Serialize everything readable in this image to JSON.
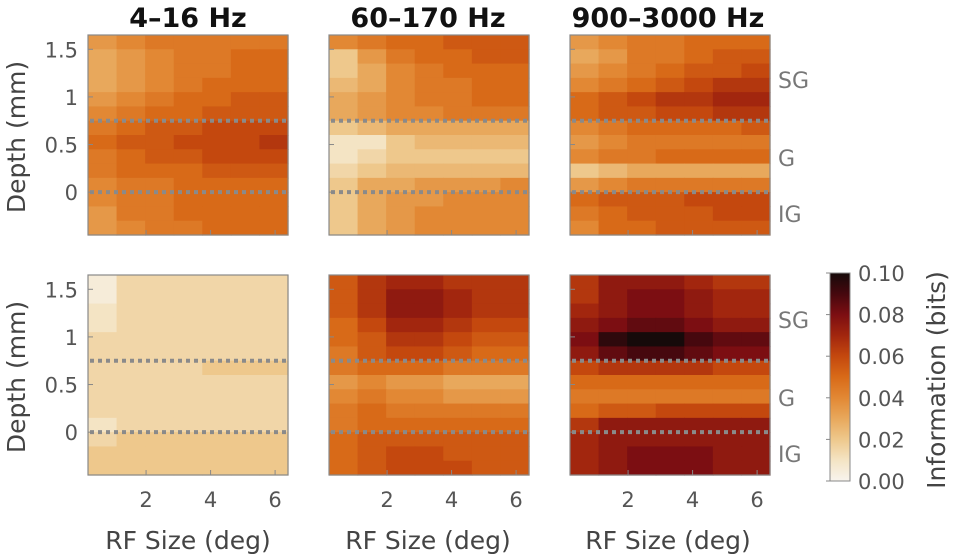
{
  "chart_data": {
    "type": "heatmap",
    "column_titles": [
      "4–16 Hz",
      "60–170 Hz",
      "900–3000 Hz"
    ],
    "xlabel": "RF Size (deg)",
    "ylabel": "Depth (mm)",
    "x_ticks": [
      "2",
      "4",
      "6"
    ],
    "y_ticks": [
      "1.5",
      "1",
      "0.5",
      "0"
    ],
    "xlim": [
      0.2,
      6.4
    ],
    "ylim": [
      -0.45,
      1.65
    ],
    "layer_labels": [
      "SG",
      "G",
      "IG"
    ],
    "layer_boundaries_mm": [
      0.75,
      0
    ],
    "colorbar": {
      "label": "Information (bits)",
      "ticks": [
        "0.10",
        "0.08",
        "0.06",
        "0.04",
        "0.02",
        "0.00"
      ],
      "range": [
        0,
        0.1
      ]
    },
    "colormap_note": "orange-red-black sequential, white at 0",
    "panels": [
      {
        "row": 0,
        "col": 0,
        "depth_levels_mm": [
          1.6,
          1.45,
          1.3,
          1.15,
          1.0,
          0.85,
          0.7,
          0.55,
          0.4,
          0.25,
          0.1,
          -0.05,
          -0.2,
          -0.35
        ],
        "rf_sizes_deg": [
          0.5,
          1.5,
          2.5,
          3.5,
          4.5,
          5.5,
          6.2
        ],
        "values": [
          [
            0.035,
            0.04,
            0.045,
            0.045,
            0.045,
            0.045,
            0.045
          ],
          [
            0.03,
            0.035,
            0.04,
            0.045,
            0.045,
            0.05,
            0.05
          ],
          [
            0.03,
            0.035,
            0.04,
            0.045,
            0.045,
            0.05,
            0.05
          ],
          [
            0.03,
            0.035,
            0.04,
            0.045,
            0.05,
            0.05,
            0.05
          ],
          [
            0.035,
            0.04,
            0.045,
            0.05,
            0.05,
            0.055,
            0.055
          ],
          [
            0.04,
            0.045,
            0.05,
            0.05,
            0.055,
            0.055,
            0.055
          ],
          [
            0.045,
            0.05,
            0.055,
            0.055,
            0.06,
            0.06,
            0.06
          ],
          [
            0.05,
            0.055,
            0.055,
            0.06,
            0.06,
            0.06,
            0.065
          ],
          [
            0.045,
            0.05,
            0.055,
            0.055,
            0.06,
            0.06,
            0.06
          ],
          [
            0.045,
            0.05,
            0.05,
            0.05,
            0.055,
            0.055,
            0.055
          ],
          [
            0.04,
            0.045,
            0.045,
            0.05,
            0.05,
            0.05,
            0.05
          ],
          [
            0.04,
            0.045,
            0.045,
            0.05,
            0.05,
            0.05,
            0.05
          ],
          [
            0.035,
            0.045,
            0.045,
            0.05,
            0.05,
            0.05,
            0.05
          ],
          [
            0.035,
            0.04,
            0.045,
            0.045,
            0.05,
            0.05,
            0.05
          ]
        ]
      },
      {
        "row": 0,
        "col": 1,
        "depth_levels_mm": [
          1.6,
          1.45,
          1.3,
          1.15,
          1.0,
          0.85,
          0.7,
          0.55,
          0.4,
          0.25,
          0.1,
          -0.05,
          -0.2,
          -0.35
        ],
        "rf_sizes_deg": [
          0.5,
          1.5,
          2.5,
          3.5,
          4.5,
          5.5,
          6.2
        ],
        "values": [
          [
            0.04,
            0.045,
            0.05,
            0.05,
            0.055,
            0.055,
            0.055
          ],
          [
            0.02,
            0.035,
            0.045,
            0.05,
            0.05,
            0.055,
            0.055
          ],
          [
            0.02,
            0.03,
            0.04,
            0.045,
            0.05,
            0.05,
            0.05
          ],
          [
            0.025,
            0.03,
            0.04,
            0.045,
            0.045,
            0.05,
            0.05
          ],
          [
            0.03,
            0.035,
            0.04,
            0.045,
            0.045,
            0.05,
            0.05
          ],
          [
            0.03,
            0.035,
            0.04,
            0.04,
            0.045,
            0.045,
            0.045
          ],
          [
            0.02,
            0.025,
            0.03,
            0.03,
            0.03,
            0.03,
            0.03
          ],
          [
            0.01,
            0.01,
            0.02,
            0.025,
            0.025,
            0.025,
            0.025
          ],
          [
            0.01,
            0.015,
            0.02,
            0.02,
            0.02,
            0.02,
            0.02
          ],
          [
            0.015,
            0.02,
            0.025,
            0.025,
            0.025,
            0.025,
            0.025
          ],
          [
            0.02,
            0.03,
            0.03,
            0.035,
            0.035,
            0.035,
            0.04
          ],
          [
            0.02,
            0.03,
            0.035,
            0.035,
            0.04,
            0.04,
            0.04
          ],
          [
            0.02,
            0.03,
            0.035,
            0.04,
            0.04,
            0.04,
            0.04
          ],
          [
            0.02,
            0.03,
            0.035,
            0.04,
            0.04,
            0.04,
            0.04
          ]
        ]
      },
      {
        "row": 0,
        "col": 2,
        "depth_levels_mm": [
          1.6,
          1.45,
          1.3,
          1.15,
          1.0,
          0.85,
          0.7,
          0.55,
          0.4,
          0.25,
          0.1,
          -0.05,
          -0.2,
          -0.35
        ],
        "rf_sizes_deg": [
          0.5,
          1.5,
          2.5,
          3.5,
          4.5,
          5.5,
          6.2
        ],
        "values": [
          [
            0.035,
            0.04,
            0.045,
            0.045,
            0.05,
            0.05,
            0.05
          ],
          [
            0.03,
            0.035,
            0.045,
            0.045,
            0.05,
            0.055,
            0.055
          ],
          [
            0.035,
            0.04,
            0.045,
            0.05,
            0.055,
            0.055,
            0.06
          ],
          [
            0.04,
            0.045,
            0.05,
            0.055,
            0.06,
            0.065,
            0.065
          ],
          [
            0.05,
            0.055,
            0.06,
            0.065,
            0.065,
            0.07,
            0.07
          ],
          [
            0.05,
            0.055,
            0.055,
            0.06,
            0.06,
            0.065,
            0.065
          ],
          [
            0.04,
            0.045,
            0.05,
            0.05,
            0.05,
            0.05,
            0.055
          ],
          [
            0.035,
            0.04,
            0.045,
            0.045,
            0.045,
            0.045,
            0.045
          ],
          [
            0.04,
            0.045,
            0.045,
            0.05,
            0.05,
            0.05,
            0.05
          ],
          [
            0.02,
            0.025,
            0.03,
            0.03,
            0.03,
            0.03,
            0.03
          ],
          [
            0.035,
            0.04,
            0.045,
            0.045,
            0.045,
            0.045,
            0.045
          ],
          [
            0.05,
            0.055,
            0.055,
            0.055,
            0.06,
            0.06,
            0.06
          ],
          [
            0.045,
            0.05,
            0.055,
            0.055,
            0.055,
            0.06,
            0.06
          ],
          [
            0.04,
            0.05,
            0.05,
            0.055,
            0.055,
            0.055,
            0.055
          ]
        ]
      },
      {
        "row": 1,
        "col": 0,
        "depth_levels_mm": [
          1.6,
          1.45,
          1.3,
          1.15,
          1.0,
          0.85,
          0.7,
          0.55,
          0.4,
          0.25,
          0.1,
          -0.05,
          -0.2,
          -0.35
        ],
        "rf_sizes_deg": [
          0.5,
          1.5,
          2.5,
          3.5,
          4.5,
          5.5,
          6.2
        ],
        "values": [
          [
            0.005,
            0.015,
            0.015,
            0.015,
            0.015,
            0.015,
            0.015
          ],
          [
            0.005,
            0.015,
            0.015,
            0.015,
            0.015,
            0.015,
            0.015
          ],
          [
            0.01,
            0.015,
            0.015,
            0.015,
            0.015,
            0.015,
            0.015
          ],
          [
            0.01,
            0.015,
            0.015,
            0.015,
            0.015,
            0.015,
            0.015
          ],
          [
            0.015,
            0.015,
            0.015,
            0.015,
            0.015,
            0.015,
            0.015
          ],
          [
            0.015,
            0.015,
            0.015,
            0.015,
            0.015,
            0.015,
            0.015
          ],
          [
            0.015,
            0.015,
            0.015,
            0.015,
            0.02,
            0.02,
            0.02
          ],
          [
            0.015,
            0.015,
            0.015,
            0.015,
            0.015,
            0.015,
            0.015
          ],
          [
            0.015,
            0.015,
            0.015,
            0.015,
            0.015,
            0.015,
            0.015
          ],
          [
            0.015,
            0.015,
            0.015,
            0.015,
            0.015,
            0.015,
            0.015
          ],
          [
            0.01,
            0.015,
            0.015,
            0.015,
            0.015,
            0.015,
            0.015
          ],
          [
            0.015,
            0.02,
            0.02,
            0.02,
            0.02,
            0.02,
            0.02
          ],
          [
            0.02,
            0.02,
            0.02,
            0.02,
            0.02,
            0.02,
            0.02
          ],
          [
            0.02,
            0.02,
            0.02,
            0.02,
            0.02,
            0.02,
            0.02
          ]
        ]
      },
      {
        "row": 1,
        "col": 1,
        "depth_levels_mm": [
          1.6,
          1.45,
          1.3,
          1.15,
          1.0,
          0.85,
          0.7,
          0.55,
          0.4,
          0.25,
          0.1,
          -0.05,
          -0.2,
          -0.35
        ],
        "rf_sizes_deg": [
          0.5,
          1.5,
          2.5,
          3.5,
          4.5,
          5.5,
          6.2
        ],
        "values": [
          [
            0.055,
            0.065,
            0.07,
            0.07,
            0.065,
            0.065,
            0.065
          ],
          [
            0.055,
            0.065,
            0.075,
            0.075,
            0.07,
            0.065,
            0.065
          ],
          [
            0.055,
            0.065,
            0.075,
            0.075,
            0.07,
            0.065,
            0.065
          ],
          [
            0.05,
            0.06,
            0.07,
            0.07,
            0.065,
            0.06,
            0.06
          ],
          [
            0.05,
            0.055,
            0.065,
            0.065,
            0.06,
            0.055,
            0.055
          ],
          [
            0.045,
            0.055,
            0.06,
            0.06,
            0.055,
            0.05,
            0.05
          ],
          [
            0.045,
            0.05,
            0.05,
            0.05,
            0.045,
            0.045,
            0.045
          ],
          [
            0.035,
            0.04,
            0.035,
            0.035,
            0.03,
            0.03,
            0.03
          ],
          [
            0.04,
            0.045,
            0.04,
            0.04,
            0.035,
            0.035,
            0.035
          ],
          [
            0.045,
            0.05,
            0.045,
            0.045,
            0.045,
            0.045,
            0.045
          ],
          [
            0.045,
            0.05,
            0.05,
            0.05,
            0.05,
            0.05,
            0.05
          ],
          [
            0.05,
            0.055,
            0.055,
            0.055,
            0.055,
            0.055,
            0.055
          ],
          [
            0.05,
            0.055,
            0.06,
            0.06,
            0.055,
            0.055,
            0.055
          ],
          [
            0.05,
            0.055,
            0.06,
            0.06,
            0.06,
            0.055,
            0.055
          ]
        ]
      },
      {
        "row": 1,
        "col": 2,
        "depth_levels_mm": [
          1.6,
          1.45,
          1.3,
          1.15,
          1.0,
          0.85,
          0.7,
          0.55,
          0.4,
          0.25,
          0.1,
          -0.05,
          -0.2,
          -0.35
        ],
        "rf_sizes_deg": [
          0.5,
          1.5,
          2.5,
          3.5,
          4.5,
          5.5,
          6.2
        ],
        "values": [
          [
            0.065,
            0.075,
            0.075,
            0.075,
            0.07,
            0.065,
            0.065
          ],
          [
            0.065,
            0.075,
            0.08,
            0.08,
            0.075,
            0.07,
            0.07
          ],
          [
            0.07,
            0.075,
            0.08,
            0.08,
            0.075,
            0.07,
            0.07
          ],
          [
            0.075,
            0.08,
            0.085,
            0.085,
            0.08,
            0.075,
            0.075
          ],
          [
            0.08,
            0.095,
            0.1,
            0.1,
            0.09,
            0.085,
            0.085
          ],
          [
            0.075,
            0.085,
            0.09,
            0.09,
            0.085,
            0.08,
            0.08
          ],
          [
            0.06,
            0.065,
            0.065,
            0.065,
            0.065,
            0.06,
            0.06
          ],
          [
            0.05,
            0.05,
            0.05,
            0.05,
            0.05,
            0.05,
            0.05
          ],
          [
            0.045,
            0.045,
            0.045,
            0.045,
            0.045,
            0.045,
            0.045
          ],
          [
            0.05,
            0.055,
            0.055,
            0.06,
            0.06,
            0.06,
            0.06
          ],
          [
            0.065,
            0.075,
            0.075,
            0.075,
            0.075,
            0.075,
            0.075
          ],
          [
            0.07,
            0.075,
            0.075,
            0.075,
            0.075,
            0.075,
            0.075
          ],
          [
            0.07,
            0.075,
            0.08,
            0.08,
            0.08,
            0.075,
            0.075
          ],
          [
            0.07,
            0.075,
            0.08,
            0.08,
            0.08,
            0.075,
            0.075
          ]
        ]
      }
    ]
  }
}
